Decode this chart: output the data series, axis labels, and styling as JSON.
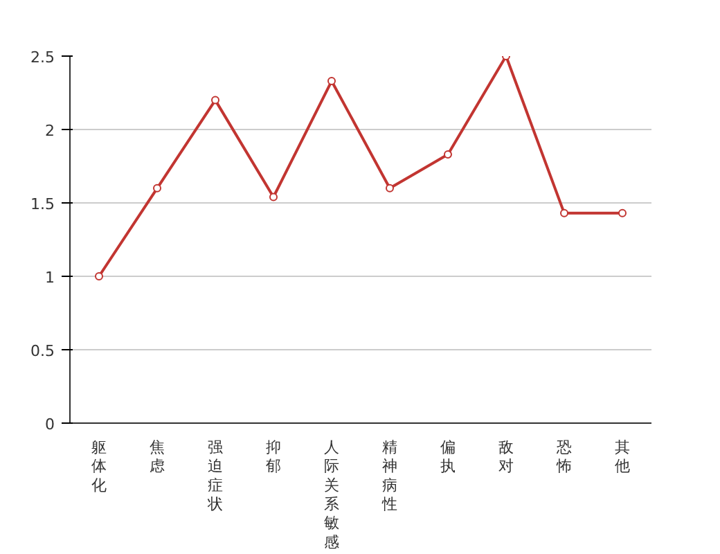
{
  "chart_data": {
    "type": "line",
    "categories": [
      "躯体化",
      "焦虑",
      "强迫症状",
      "抑郁",
      "人际关系敏感",
      "精神病性",
      "偏执",
      "敌对",
      "恐怖",
      "其他"
    ],
    "series": [
      {
        "color": "#c23531",
        "values": [
          1.0,
          1.6,
          2.2,
          1.54,
          2.33,
          1.6,
          1.83,
          2.5,
          1.43,
          1.43
        ]
      }
    ],
    "ylim": [
      0,
      2.5
    ],
    "yticks": [
      0,
      0.5,
      1,
      1.5,
      2,
      2.5
    ],
    "grid": "y",
    "marker": "circle",
    "line_style": "solid"
  }
}
